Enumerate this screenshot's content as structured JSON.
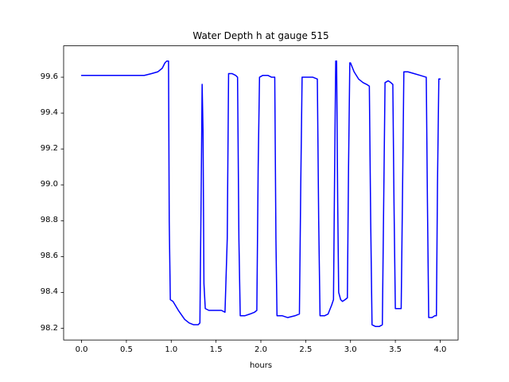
{
  "chart_data": {
    "type": "line",
    "title": "Water Depth h at gauge 515",
    "xlabel": "hours",
    "ylabel": "",
    "line_color": "#0000ff",
    "axis_color": "#000000",
    "grid": false,
    "legend": "none",
    "xlim": [
      -0.2,
      4.2
    ],
    "ylim": [
      98.135,
      99.775
    ],
    "xticks": [
      0.0,
      0.5,
      1.0,
      1.5,
      2.0,
      2.5,
      3.0,
      3.5,
      4.0
    ],
    "yticks": [
      98.2,
      98.4,
      98.6,
      98.8,
      99.0,
      99.2,
      99.4,
      99.6
    ],
    "series": [
      {
        "name": "h",
        "points": [
          [
            0.0,
            99.61
          ],
          [
            0.1,
            99.61
          ],
          [
            0.2,
            99.61
          ],
          [
            0.3,
            99.61
          ],
          [
            0.4,
            99.61
          ],
          [
            0.5,
            99.61
          ],
          [
            0.6,
            99.61
          ],
          [
            0.7,
            99.61
          ],
          [
            0.78,
            99.62
          ],
          [
            0.85,
            99.63
          ],
          [
            0.9,
            99.65
          ],
          [
            0.93,
            99.68
          ],
          [
            0.95,
            99.69
          ],
          [
            0.97,
            99.69
          ],
          [
            0.978,
            98.8
          ],
          [
            0.99,
            98.36
          ],
          [
            1.02,
            98.35
          ],
          [
            1.08,
            98.3
          ],
          [
            1.15,
            98.25
          ],
          [
            1.2,
            98.23
          ],
          [
            1.25,
            98.22
          ],
          [
            1.3,
            98.22
          ],
          [
            1.32,
            98.23
          ],
          [
            1.335,
            99.0
          ],
          [
            1.345,
            99.56
          ],
          [
            1.355,
            99.3
          ],
          [
            1.365,
            98.45
          ],
          [
            1.38,
            98.31
          ],
          [
            1.42,
            98.3
          ],
          [
            1.5,
            98.3
          ],
          [
            1.56,
            98.3
          ],
          [
            1.6,
            98.29
          ],
          [
            1.625,
            98.7
          ],
          [
            1.64,
            99.62
          ],
          [
            1.68,
            99.62
          ],
          [
            1.72,
            99.61
          ],
          [
            1.74,
            99.6
          ],
          [
            1.755,
            98.7
          ],
          [
            1.77,
            98.27
          ],
          [
            1.82,
            98.27
          ],
          [
            1.88,
            98.28
          ],
          [
            1.93,
            98.29
          ],
          [
            1.955,
            98.3
          ],
          [
            1.97,
            99.1
          ],
          [
            1.985,
            99.6
          ],
          [
            2.02,
            99.61
          ],
          [
            2.08,
            99.61
          ],
          [
            2.12,
            99.6
          ],
          [
            2.155,
            99.6
          ],
          [
            2.168,
            98.7
          ],
          [
            2.18,
            98.27
          ],
          [
            2.24,
            98.27
          ],
          [
            2.3,
            98.26
          ],
          [
            2.38,
            98.27
          ],
          [
            2.43,
            98.28
          ],
          [
            2.445,
            99.0
          ],
          [
            2.46,
            99.6
          ],
          [
            2.52,
            99.6
          ],
          [
            2.58,
            99.6
          ],
          [
            2.63,
            99.59
          ],
          [
            2.645,
            98.8
          ],
          [
            2.66,
            98.27
          ],
          [
            2.71,
            98.27
          ],
          [
            2.75,
            98.28
          ],
          [
            2.79,
            98.33
          ],
          [
            2.81,
            98.36
          ],
          [
            2.825,
            99.2
          ],
          [
            2.835,
            99.69
          ],
          [
            2.845,
            99.69
          ],
          [
            2.857,
            98.9
          ],
          [
            2.868,
            98.4
          ],
          [
            2.89,
            98.36
          ],
          [
            2.91,
            98.35
          ],
          [
            2.94,
            98.36
          ],
          [
            2.965,
            98.37
          ],
          [
            2.978,
            99.1
          ],
          [
            2.992,
            99.68
          ],
          [
            3.0,
            99.68
          ],
          [
            3.04,
            99.63
          ],
          [
            3.09,
            99.59
          ],
          [
            3.14,
            99.57
          ],
          [
            3.18,
            99.56
          ],
          [
            3.21,
            99.55
          ],
          [
            3.225,
            98.8
          ],
          [
            3.24,
            98.22
          ],
          [
            3.28,
            98.21
          ],
          [
            3.32,
            98.21
          ],
          [
            3.355,
            98.22
          ],
          [
            3.37,
            98.9
          ],
          [
            3.385,
            99.57
          ],
          [
            3.42,
            99.58
          ],
          [
            3.45,
            99.57
          ],
          [
            3.472,
            99.56
          ],
          [
            3.485,
            98.9
          ],
          [
            3.5,
            98.31
          ],
          [
            3.53,
            98.31
          ],
          [
            3.565,
            98.31
          ],
          [
            3.58,
            98.95
          ],
          [
            3.595,
            99.63
          ],
          [
            3.64,
            99.63
          ],
          [
            3.71,
            99.62
          ],
          [
            3.78,
            99.61
          ],
          [
            3.845,
            99.6
          ],
          [
            3.858,
            98.9
          ],
          [
            3.872,
            98.26
          ],
          [
            3.91,
            98.26
          ],
          [
            3.94,
            98.27
          ],
          [
            3.958,
            98.27
          ],
          [
            3.97,
            99.0
          ],
          [
            3.985,
            99.59
          ],
          [
            4.0,
            99.59
          ]
        ]
      }
    ]
  }
}
